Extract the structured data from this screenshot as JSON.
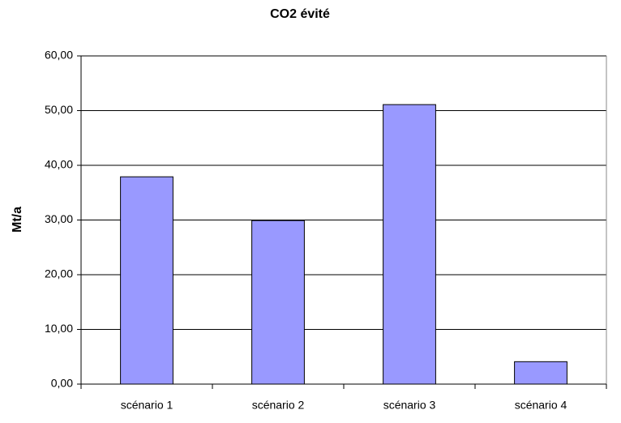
{
  "chart_data": {
    "type": "bar",
    "title": "CO2 évité",
    "y_label": "Mt/a",
    "categories": [
      "scénario 1",
      "scénario 2",
      "scénario 3",
      "scénario 4"
    ],
    "values": [
      37.9,
      29.9,
      51.1,
      4.1
    ],
    "color": "#9999ff",
    "ylim": [
      0,
      60
    ],
    "yticks": [
      {
        "value": 0,
        "label": "0,00"
      },
      {
        "value": 10,
        "label": "10,00"
      },
      {
        "value": 20,
        "label": "20,00"
      },
      {
        "value": 30,
        "label": "30,00"
      },
      {
        "value": 40,
        "label": "40,00"
      },
      {
        "value": 50,
        "label": "50,00"
      },
      {
        "value": 60,
        "label": "60,00"
      }
    ],
    "grid": true
  }
}
